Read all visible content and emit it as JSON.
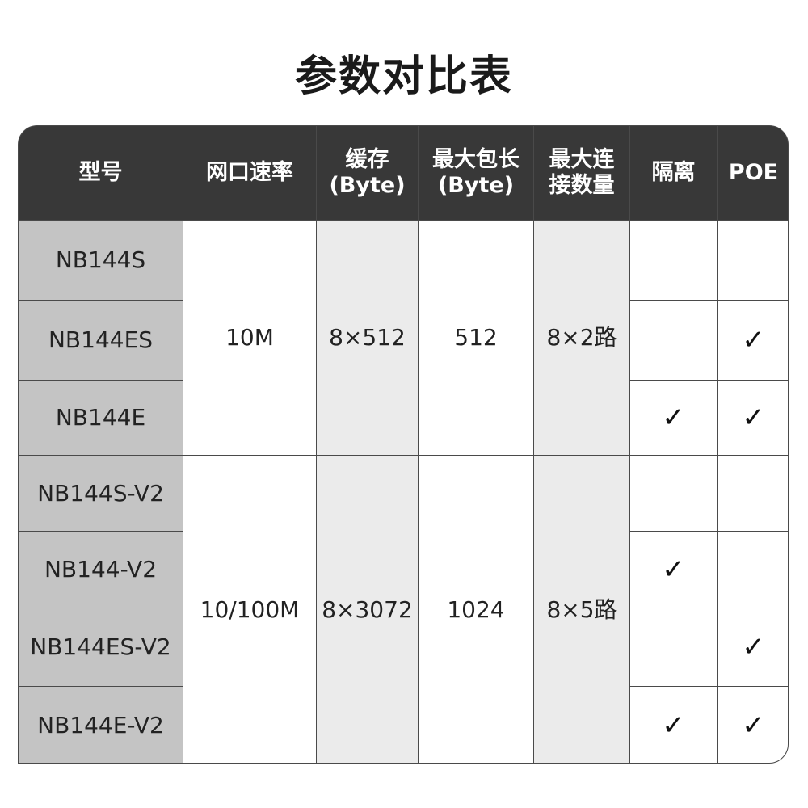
{
  "title": "参数对比表",
  "headers": [
    "型号",
    "网口速率",
    "缓存\n(Byte)",
    "最大包长\n(Byte)",
    "最大连\n接数量",
    "隔离",
    "POE"
  ],
  "models": [
    "NB144S",
    "NB144ES",
    "NB144E",
    "NB144S-V2",
    "NB144-V2",
    "NB144ES-V2",
    "NB144E-V2"
  ],
  "groups": [
    {
      "speed": "10M",
      "buffer": "8×512",
      "max_packet": "512",
      "connections": "8×2路"
    },
    {
      "speed": "10/100M",
      "buffer": "8×3072",
      "max_packet": "1024",
      "connections": "8×5路"
    }
  ],
  "isolation": [
    "",
    "",
    "✓",
    "",
    "✓",
    "",
    "✓"
  ],
  "poe": [
    "",
    "✓",
    "✓",
    "",
    "",
    "✓",
    "✓"
  ],
  "check_icon": "checkmark"
}
